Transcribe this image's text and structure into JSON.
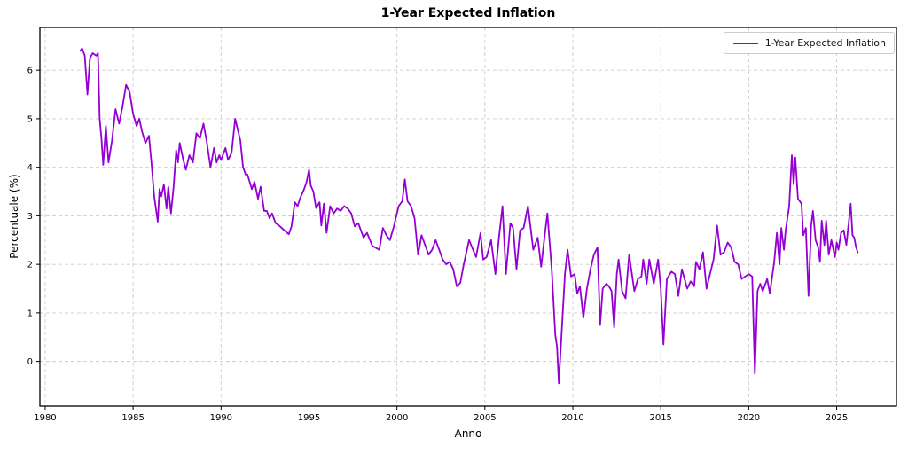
{
  "figure": {
    "title": "1-Year Expected Inflation",
    "xlabel": "Anno",
    "ylabel": "Percentuale (%)",
    "legend": {
      "label": "1-Year Expected Inflation"
    },
    "colors": {
      "line": "#9400D3",
      "grid": "#cccccc",
      "spine": "#000000",
      "tick_text": "#000000",
      "background": "#ffffff",
      "legend_border": "#cccccc"
    }
  },
  "chart_data": {
    "type": "line",
    "title": "1-Year Expected Inflation",
    "xlabel": "Anno",
    "ylabel": "Percentuale (%)",
    "legend_position": "upper right",
    "grid": true,
    "grid_style": "dashed",
    "xlim": [
      1979.7,
      2028.4
    ],
    "ylim": [
      -0.92,
      6.88
    ],
    "xticks": [
      1980,
      1985,
      1990,
      1995,
      2000,
      2005,
      2010,
      2015,
      2020,
      2025
    ],
    "yticks": [
      0,
      1,
      2,
      3,
      4,
      5,
      6
    ],
    "series": [
      {
        "name": "1-Year Expected Inflation",
        "color": "#9400D3",
        "x": [
          1982.0,
          1982.1,
          1982.25,
          1982.4,
          1982.55,
          1982.7,
          1982.9,
          1983.0,
          1983.1,
          1983.2,
          1983.3,
          1983.45,
          1983.6,
          1983.8,
          1984.0,
          1984.2,
          1984.4,
          1984.6,
          1984.8,
          1985.0,
          1985.2,
          1985.35,
          1985.5,
          1985.7,
          1985.9,
          1986.05,
          1986.2,
          1986.4,
          1986.5,
          1986.6,
          1986.75,
          1986.9,
          1987.0,
          1987.15,
          1987.3,
          1987.45,
          1987.55,
          1987.65,
          1987.85,
          1988.0,
          1988.2,
          1988.4,
          1988.6,
          1988.8,
          1989.0,
          1989.2,
          1989.4,
          1989.6,
          1989.75,
          1989.9,
          1990.0,
          1990.25,
          1990.4,
          1990.6,
          1990.8,
          1991.0,
          1991.1,
          1991.25,
          1991.4,
          1991.5,
          1991.75,
          1991.9,
          1992.1,
          1992.25,
          1992.45,
          1992.6,
          1992.75,
          1992.9,
          1993.1,
          1993.3,
          1993.6,
          1993.85,
          1994.0,
          1994.2,
          1994.35,
          1994.5,
          1994.7,
          1994.85,
          1995.0,
          1995.1,
          1995.25,
          1995.4,
          1995.6,
          1995.7,
          1995.85,
          1996.0,
          1996.2,
          1996.4,
          1996.6,
          1996.8,
          1997.0,
          1997.2,
          1997.4,
          1997.6,
          1997.8,
          1998.1,
          1998.3,
          1998.6,
          1999.0,
          1999.2,
          1999.4,
          1999.6,
          1999.8,
          2000.1,
          2000.3,
          2000.45,
          2000.6,
          2000.8,
          2001.0,
          2001.2,
          2001.4,
          2001.6,
          2001.8,
          2002.0,
          2002.2,
          2002.4,
          2002.6,
          2002.8,
          2003.0,
          2003.2,
          2003.4,
          2003.6,
          2003.8,
          2004.1,
          2004.5,
          2004.75,
          2004.9,
          2005.1,
          2005.35,
          2005.6,
          2005.8,
          2006.0,
          2006.2,
          2006.45,
          2006.6,
          2006.8,
          2007.0,
          2007.2,
          2007.45,
          2007.6,
          2007.75,
          2008.0,
          2008.2,
          2008.4,
          2008.55,
          2008.8,
          2009.0,
          2009.1,
          2009.2,
          2009.35,
          2009.55,
          2009.7,
          2009.9,
          2010.1,
          2010.25,
          2010.4,
          2010.6,
          2010.8,
          2011.0,
          2011.2,
          2011.4,
          2011.55,
          2011.7,
          2011.9,
          2012.05,
          2012.2,
          2012.35,
          2012.5,
          2012.6,
          2012.8,
          2013.0,
          2013.2,
          2013.5,
          2013.7,
          2013.9,
          2014.0,
          2014.2,
          2014.35,
          2014.6,
          2014.85,
          2015.0,
          2015.15,
          2015.35,
          2015.6,
          2015.8,
          2016.0,
          2016.2,
          2016.5,
          2016.7,
          2016.9,
          2017.0,
          2017.2,
          2017.4,
          2017.6,
          2017.8,
          2018.0,
          2018.2,
          2018.4,
          2018.6,
          2018.8,
          2019.0,
          2019.2,
          2019.4,
          2019.6,
          2019.8,
          2020.0,
          2020.2,
          2020.35,
          2020.5,
          2020.65,
          2020.8,
          2021.05,
          2021.2,
          2021.45,
          2021.6,
          2021.75,
          2021.85,
          2022.0,
          2022.1,
          2022.3,
          2022.45,
          2022.55,
          2022.65,
          2022.8,
          2023.0,
          2023.1,
          2023.25,
          2023.4,
          2023.55,
          2023.65,
          2023.8,
          2023.95,
          2024.05,
          2024.15,
          2024.3,
          2024.4,
          2024.55,
          2024.7,
          2024.9,
          2025.0,
          2025.1,
          2025.25,
          2025.4,
          2025.55,
          2025.65,
          2025.8,
          2025.9,
          2026.0,
          2026.1,
          2026.2
        ],
        "y": [
          6.4,
          6.45,
          6.3,
          5.5,
          6.25,
          6.35,
          6.3,
          6.35,
          5.0,
          4.6,
          4.05,
          4.85,
          4.1,
          4.55,
          5.2,
          4.9,
          5.25,
          5.7,
          5.55,
          5.1,
          4.85,
          5.0,
          4.75,
          4.5,
          4.65,
          4.05,
          3.4,
          2.88,
          3.55,
          3.4,
          3.65,
          3.15,
          3.6,
          3.05,
          3.6,
          4.35,
          4.1,
          4.5,
          4.15,
          3.95,
          4.25,
          4.1,
          4.7,
          4.6,
          4.9,
          4.5,
          4.0,
          4.4,
          4.1,
          4.25,
          4.15,
          4.4,
          4.15,
          4.3,
          5.0,
          4.7,
          4.55,
          4.0,
          3.85,
          3.85,
          3.55,
          3.7,
          3.35,
          3.6,
          3.1,
          3.1,
          2.95,
          3.05,
          2.85,
          2.8,
          2.7,
          2.62,
          2.78,
          3.28,
          3.2,
          3.37,
          3.53,
          3.68,
          3.95,
          3.62,
          3.5,
          3.16,
          3.28,
          2.8,
          3.25,
          2.65,
          3.2,
          3.05,
          3.15,
          3.1,
          3.2,
          3.15,
          3.05,
          2.78,
          2.85,
          2.55,
          2.65,
          2.38,
          2.3,
          2.75,
          2.6,
          2.5,
          2.75,
          3.2,
          3.3,
          3.75,
          3.3,
          3.2,
          2.95,
          2.2,
          2.6,
          2.4,
          2.2,
          2.3,
          2.5,
          2.3,
          2.1,
          2.0,
          2.05,
          1.9,
          1.55,
          1.62,
          2.0,
          2.5,
          2.15,
          2.65,
          2.1,
          2.15,
          2.5,
          1.8,
          2.55,
          3.2,
          1.8,
          2.85,
          2.75,
          1.9,
          2.7,
          2.75,
          3.2,
          2.75,
          2.3,
          2.55,
          1.95,
          2.6,
          3.05,
          1.9,
          0.55,
          0.3,
          -0.45,
          0.5,
          1.8,
          2.3,
          1.75,
          1.8,
          1.4,
          1.55,
          0.9,
          1.5,
          1.9,
          2.2,
          2.35,
          0.75,
          1.5,
          1.6,
          1.55,
          1.45,
          0.7,
          1.8,
          2.1,
          1.45,
          1.3,
          2.2,
          1.45,
          1.7,
          1.75,
          2.1,
          1.6,
          2.1,
          1.6,
          2.1,
          1.5,
          0.35,
          1.7,
          1.85,
          1.8,
          1.35,
          1.9,
          1.5,
          1.65,
          1.55,
          2.05,
          1.9,
          2.25,
          1.5,
          1.8,
          2.1,
          2.8,
          2.2,
          2.25,
          2.45,
          2.35,
          2.05,
          2.0,
          1.7,
          1.75,
          1.8,
          1.75,
          -0.25,
          1.45,
          1.6,
          1.45,
          1.7,
          1.4,
          2.05,
          2.65,
          2.0,
          2.75,
          2.3,
          2.7,
          3.2,
          4.25,
          3.65,
          4.2,
          3.35,
          3.25,
          2.6,
          2.75,
          1.35,
          2.8,
          3.1,
          2.5,
          2.35,
          2.05,
          2.9,
          2.4,
          2.9,
          2.2,
          2.5,
          2.15,
          2.45,
          2.3,
          2.65,
          2.7,
          2.4,
          2.75,
          3.25,
          2.6,
          2.55,
          2.35,
          2.25
        ]
      }
    ]
  }
}
